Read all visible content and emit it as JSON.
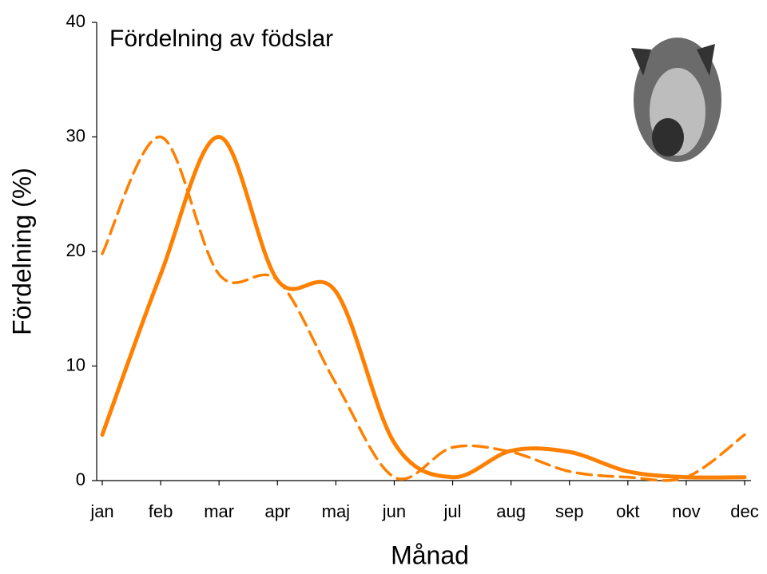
{
  "chart_data": {
    "type": "line",
    "title": "Fördelning av födslar",
    "x_label": "Månad",
    "y_label": "Fördelning (%)",
    "categories": [
      "jan",
      "feb",
      "mar",
      "apr",
      "maj",
      "jun",
      "jul",
      "aug",
      "sep",
      "okt",
      "nov",
      "dec"
    ],
    "series": [
      {
        "color": "#ff8000",
        "dash": false,
        "values": [
          4,
          18,
          30,
          17.5,
          16.5,
          3.3,
          0.3,
          2.6,
          2.5,
          0.8,
          0.3,
          0.3
        ]
      },
      {
        "color": "#ff8000",
        "dash": true,
        "values": [
          19.8,
          30,
          18,
          17.5,
          8.5,
          0.3,
          2.9,
          2.5,
          0.8,
          0.3,
          0.3,
          4
        ]
      }
    ],
    "ylim": [
      0,
      40
    ],
    "yticks": [
      0,
      10,
      20,
      30,
      40
    ],
    "grid": false
  }
}
